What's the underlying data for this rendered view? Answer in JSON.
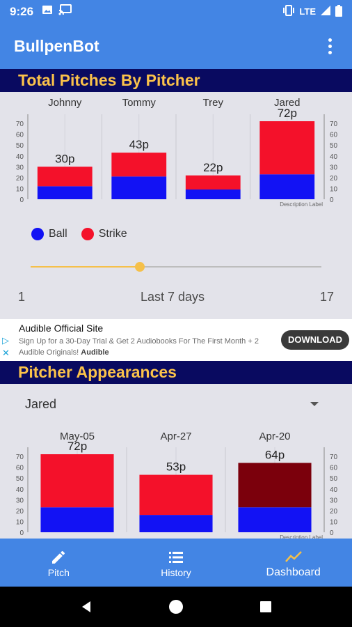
{
  "status_bar": {
    "time": "9:26",
    "network": "LTE",
    "icons": [
      "image-icon",
      "cast-icon",
      "vibrate-icon",
      "signal-icon",
      "battery-icon"
    ]
  },
  "app": {
    "title": "BullpenBot",
    "menu_icon": "more-vert-icon"
  },
  "total_section": {
    "header": "Total Pitches By Pitcher",
    "chart_description": "Description Label"
  },
  "legend": [
    {
      "label": "Ball",
      "color": "#1212f4"
    },
    {
      "label": "Strike",
      "color": "#f4112a"
    }
  ],
  "slider": {
    "min_label": "1",
    "max_label": "17",
    "value_label": "Last 7 days",
    "value": 7,
    "min": 1,
    "max": 17
  },
  "ad": {
    "title": "Audible Official Site",
    "description": "Sign Up for a 30-Day Trial & Get 2 Audiobooks For The First Month + 2 Audible Originals!",
    "advertiser": "Audible",
    "cta": "DOWNLOAD",
    "icons": [
      "ad-choices-icon",
      "close-icon"
    ]
  },
  "appearances_section": {
    "header": "Pitcher Appearances",
    "selected_pitcher": "Jared",
    "dropdown_icon": "arrow-drop-down-icon",
    "chart_description": "Description Label"
  },
  "bottom_nav": [
    {
      "label": "Pitch",
      "icon": "pencil-icon"
    },
    {
      "label": "History",
      "icon": "list-icon"
    },
    {
      "label": "Dashboard",
      "icon": "trend-icon",
      "active": true
    }
  ],
  "colors": {
    "app_bar": "#4385e4",
    "section_header_bg": "#090a60",
    "section_header_text": "#fbc34a",
    "ball": "#1212f4",
    "strike": "#f4112a",
    "strike_highlight": "#7b000c",
    "slider": "#f5c04a"
  },
  "chart_data": [
    {
      "type": "bar",
      "stacked": true,
      "categories": [
        "Johnny",
        "Tommy",
        "Trey",
        "Jared"
      ],
      "series": [
        {
          "name": "Ball",
          "values": [
            12,
            21,
            9,
            23
          ]
        },
        {
          "name": "Strike",
          "values": [
            18,
            22,
            13,
            49
          ]
        }
      ],
      "totals_labels": [
        "30p",
        "43p",
        "22p",
        "72p"
      ],
      "yticks": [
        0,
        10,
        20,
        30,
        40,
        50,
        60,
        70
      ],
      "ylim": [
        0,
        72
      ],
      "description": "Description Label"
    },
    {
      "type": "bar",
      "stacked": true,
      "categories": [
        "May-05",
        "Apr-27",
        "Apr-20"
      ],
      "series": [
        {
          "name": "Ball",
          "values": [
            23,
            16,
            23
          ]
        },
        {
          "name": "Strike",
          "values": [
            49,
            37,
            41
          ]
        }
      ],
      "totals_labels": [
        "72p",
        "53p",
        "64p"
      ],
      "yticks": [
        0,
        10,
        20,
        30,
        40,
        50,
        60,
        70
      ],
      "ylim": [
        0,
        72
      ],
      "description": "Description Label"
    }
  ]
}
